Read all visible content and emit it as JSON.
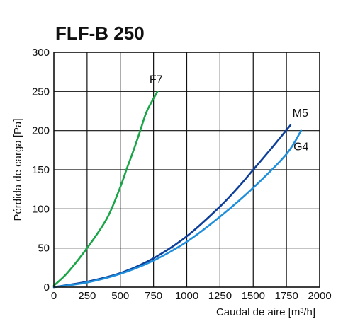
{
  "chart_data": {
    "type": "line",
    "title": "FLF-B 250",
    "xlabel": "Caudal de aire [m³/h]",
    "ylabel": "Pérdida de carga [Pa]",
    "xlim": [
      0,
      2000
    ],
    "ylim": [
      0,
      300
    ],
    "x_ticks": [
      0,
      250,
      500,
      750,
      1000,
      1250,
      1500,
      1750,
      2000
    ],
    "y_ticks": [
      0,
      50,
      100,
      150,
      200,
      250,
      300
    ],
    "x_tick_labels": [
      "0",
      "250",
      "500",
      "750",
      "1000",
      "1250",
      "1500",
      "1750",
      "2000"
    ],
    "y_tick_labels": [
      "0",
      "50",
      "100",
      "150",
      "200",
      "250",
      "300"
    ],
    "grid": true,
    "series": [
      {
        "name": "F7",
        "color": "#1aa648",
        "points": [
          [
            0,
            2
          ],
          [
            100,
            18
          ],
          [
            250,
            50
          ],
          [
            400,
            88
          ],
          [
            500,
            128
          ],
          [
            550,
            152
          ],
          [
            600,
            175
          ],
          [
            650,
            200
          ],
          [
            700,
            225
          ],
          [
            780,
            250
          ]
        ]
      },
      {
        "name": "M5",
        "color": "#0d3f9a",
        "points": [
          [
            0,
            0
          ],
          [
            250,
            7
          ],
          [
            500,
            18
          ],
          [
            750,
            37
          ],
          [
            1000,
            65
          ],
          [
            1250,
            103
          ],
          [
            1400,
            130
          ],
          [
            1500,
            150
          ],
          [
            1650,
            180
          ],
          [
            1780,
            207
          ]
        ]
      },
      {
        "name": "G4",
        "color": "#1f8fdc",
        "points": [
          [
            0,
            0
          ],
          [
            250,
            6
          ],
          [
            500,
            17
          ],
          [
            750,
            34
          ],
          [
            1000,
            58
          ],
          [
            1250,
            90
          ],
          [
            1500,
            127
          ],
          [
            1750,
            170
          ],
          [
            1860,
            200
          ]
        ]
      }
    ]
  }
}
